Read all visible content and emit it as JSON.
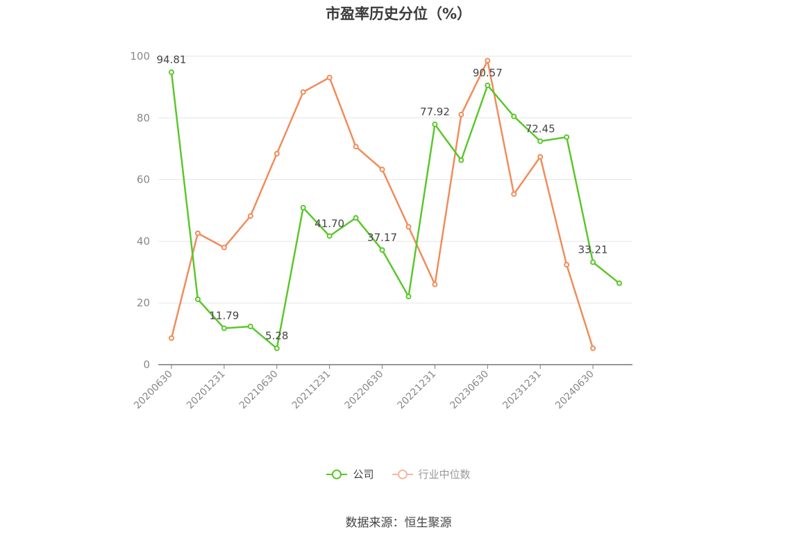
{
  "title": "市盈率历史分位（%）",
  "source": "数据来源：恒生聚源",
  "legend": [
    {
      "label": "公司",
      "color": "#5ac72b",
      "muted": false
    },
    {
      "label": "行业中位数",
      "color": "#f5b7a3",
      "muted": true
    }
  ],
  "chart_data": {
    "type": "line",
    "ylim": [
      0,
      100
    ],
    "yticks": [
      0,
      20,
      40,
      60,
      80,
      100
    ],
    "grid": true,
    "x": [
      "20200630",
      "20200930",
      "20201231",
      "20210331",
      "20210630",
      "20210930",
      "20211231",
      "20220331",
      "20220630",
      "20220930",
      "20221231",
      "20230331",
      "20230630",
      "20230930",
      "20231231",
      "20240331",
      "20240630",
      "20240930"
    ],
    "xtick_labels": [
      "20200630",
      "20201231",
      "20210630",
      "20211231",
      "20220630",
      "20221231",
      "20230630",
      "20231231",
      "20240630"
    ],
    "series": [
      {
        "name": "公司",
        "color": "#5ac72b",
        "values": [
          94.81,
          21.2,
          11.79,
          12.4,
          5.28,
          50.9,
          41.7,
          47.6,
          37.17,
          22.1,
          77.92,
          66.3,
          90.57,
          80.5,
          72.45,
          73.8,
          33.21,
          26.4
        ],
        "labels": [
          {
            "index": 0,
            "text": "94.81"
          },
          {
            "index": 2,
            "text": "11.79"
          },
          {
            "index": 4,
            "text": "5.28"
          },
          {
            "index": 6,
            "text": "41.70"
          },
          {
            "index": 8,
            "text": "37.17"
          },
          {
            "index": 10,
            "text": "77.92"
          },
          {
            "index": 12,
            "text": "90.57"
          },
          {
            "index": 14,
            "text": "72.45"
          },
          {
            "index": 16,
            "text": "33.21"
          }
        ]
      },
      {
        "name": "行业中位数",
        "color": "#f08c5a",
        "values": [
          8.6,
          42.6,
          38.0,
          48.2,
          68.4,
          88.4,
          93.1,
          70.7,
          63.3,
          44.7,
          26.0,
          81.1,
          98.6,
          55.3,
          67.4,
          32.4,
          5.3,
          null
        ]
      }
    ]
  }
}
